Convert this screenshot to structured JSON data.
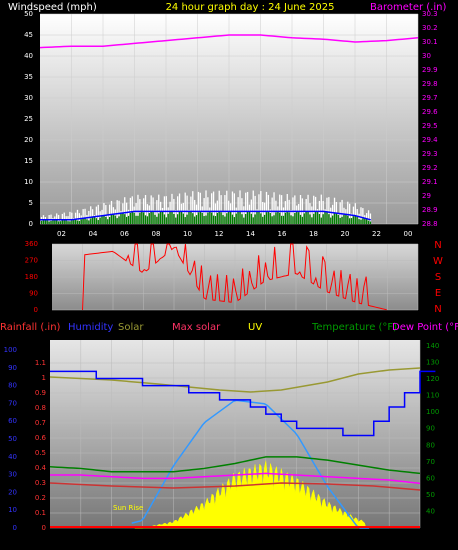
{
  "header": {
    "left_title": "Windspeed (mph)",
    "center_title": "24 hour graph day : 24 June 2025",
    "right_title": "Barometer (.in)"
  },
  "hour_ticks": [
    "02",
    "04",
    "06",
    "08",
    "10",
    "12",
    "14",
    "16",
    "18",
    "20",
    "22",
    "00"
  ],
  "wind_axis_ticks": [
    "0",
    "5",
    "10",
    "15",
    "20",
    "25",
    "30",
    "35",
    "40",
    "45",
    "50"
  ],
  "baro_axis_ticks": [
    "28.8",
    "28.9",
    "29",
    "29.1",
    "29.2",
    "29.3",
    "29.4",
    "29.5",
    "29.6",
    "29.7",
    "29.8",
    "29.9",
    "30",
    "30.1",
    "30.2",
    "30.3"
  ],
  "dir_axis_ticks": [
    "0",
    "90",
    "180",
    "270",
    "360"
  ],
  "compass_letters": [
    "N",
    "W",
    "S",
    "E",
    "N"
  ],
  "bottom_legend": {
    "rainfall": "Rainfall (.in)",
    "humidity": "Humidity",
    "solar": "Solar",
    "max_solar": "Max solar",
    "uv": "UV",
    "temperature": "Temperature (°F)",
    "dew_point": "Dew Point (°F"
  },
  "rain_axis_ticks": [
    "0",
    "0.1",
    "0.2",
    "0.3",
    "0.4",
    "0.5",
    "0.6",
    "0.7",
    "0.8",
    "0.9",
    "1",
    "1.1"
  ],
  "humidity_axis_ticks": [
    "0",
    "10",
    "20",
    "30",
    "40",
    "50",
    "60",
    "70",
    "80",
    "90",
    "100"
  ],
  "temp_axis_ticks": [
    "40",
    "50",
    "60",
    "70",
    "80",
    "90",
    "100",
    "110",
    "120",
    "130",
    "140"
  ],
  "sunrise_label": "Sun Rise",
  "colors": {
    "wind_avg": "#0000ff",
    "wind_gust": "#ffffff",
    "wind_green": "#008000",
    "barometer": "#ff00ff",
    "direction": "#ff0000",
    "humidity": "#0000ff",
    "solar": "#ffff00",
    "max_solar": "#3399ff",
    "temperature": "#008000",
    "dew_point": "#ff00ff",
    "olive": "#999933"
  },
  "chart_data": [
    {
      "type": "line",
      "title": "24 hour graph day : 24 June 2025",
      "xlabel": "",
      "ylabel": "Windspeed (mph)",
      "y2label": "Barometer (.in)",
      "x": [
        0,
        2,
        4,
        6,
        8,
        10,
        12,
        14,
        16,
        18,
        20,
        22,
        24
      ],
      "ylim": [
        0,
        50
      ],
      "y2lim": [
        28.8,
        30.3
      ],
      "series": [
        {
          "name": "Barometer (.in)",
          "axis": "right",
          "values": [
            30.06,
            30.07,
            30.07,
            30.09,
            30.11,
            30.13,
            30.15,
            30.15,
            30.13,
            30.12,
            30.1,
            30.11,
            30.13
          ]
        },
        {
          "name": "Windspeed (mph)",
          "values": [
            1,
            1,
            2,
            3,
            3,
            3,
            3,
            3,
            3,
            3,
            2,
            0,
            0
          ]
        },
        {
          "name": "Gust",
          "values": [
            2,
            3,
            5,
            7,
            7,
            8,
            8,
            8,
            7,
            7,
            5,
            1,
            0
          ]
        }
      ]
    },
    {
      "type": "scatter",
      "ylabel": "Wind direction",
      "x": [
        0,
        2,
        4,
        6,
        8,
        10,
        12,
        14,
        16,
        18,
        20,
        22,
        24
      ],
      "ylim": [
        0,
        360
      ],
      "series": [
        {
          "name": "Direction",
          "values": [
            null,
            300,
            320,
            200,
            340,
            60,
            40,
            160,
            200,
            100,
            40,
            0,
            null
          ]
        }
      ]
    },
    {
      "type": "line",
      "ylabel": "Rainfall (.in)",
      "y2label": "Temperature (°F)",
      "x": [
        0,
        2,
        4,
        6,
        8,
        10,
        12,
        14,
        16,
        18,
        20,
        22,
        24
      ],
      "series": [
        {
          "name": "Humidity",
          "values": [
            87,
            87,
            83,
            81,
            78,
            75,
            70,
            62,
            56,
            55,
            52,
            67,
            86
          ]
        },
        {
          "name": "Temperature (°F)",
          "values": [
            67,
            66,
            64,
            64,
            64,
            66,
            69,
            73,
            73,
            71,
            68,
            65,
            63
          ]
        },
        {
          "name": "Dew Point (°F",
          "values": [
            62,
            62,
            61,
            60,
            60,
            61,
            62,
            63,
            62,
            61,
            60,
            59,
            57
          ]
        },
        {
          "name": "Solar",
          "values": [
            0,
            0,
            0,
            0,
            30,
            120,
            250,
            300,
            230,
            120,
            40,
            0,
            0
          ]
        },
        {
          "name": "Max solar",
          "values": [
            0,
            0,
            0,
            40,
            330,
            560,
            680,
            660,
            500,
            220,
            0,
            0,
            0
          ]
        }
      ]
    }
  ]
}
